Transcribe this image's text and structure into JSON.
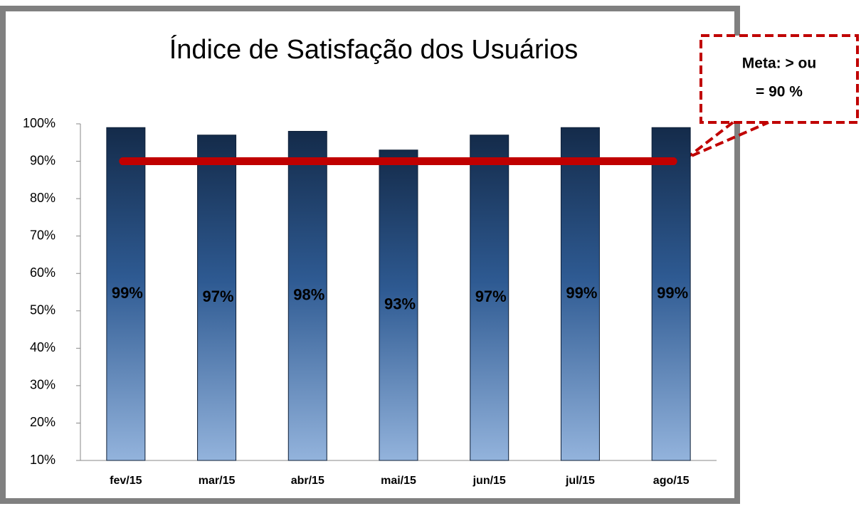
{
  "chart_data": {
    "type": "bar",
    "title": "Índice de Satisfação dos Usuários",
    "categories": [
      "fev/15",
      "mar/15",
      "abr/15",
      "mai/15",
      "jun/15",
      "jul/15",
      "ago/15"
    ],
    "values": [
      99,
      97,
      98,
      93,
      97,
      99,
      99
    ],
    "value_labels": [
      "99%",
      "97%",
      "98%",
      "93%",
      "97%",
      "99%",
      "99%"
    ],
    "color": "#2a5286",
    "ylim": [
      10,
      100
    ],
    "yticks": [
      {
        "value": 10,
        "label": "10%"
      },
      {
        "value": 20,
        "label": "20%"
      },
      {
        "value": 30,
        "label": "30%"
      },
      {
        "value": 40,
        "label": "40%"
      },
      {
        "value": 50,
        "label": "50%"
      },
      {
        "value": 60,
        "label": "60%"
      },
      {
        "value": 70,
        "label": "70%"
      },
      {
        "value": 80,
        "label": "80%"
      },
      {
        "value": 90,
        "label": "90%"
      },
      {
        "value": 100,
        "label": "100%"
      }
    ],
    "target": 90,
    "target_color": "#c00000",
    "annotation": [
      "Meta: > ou",
      "= 90 %"
    ]
  }
}
